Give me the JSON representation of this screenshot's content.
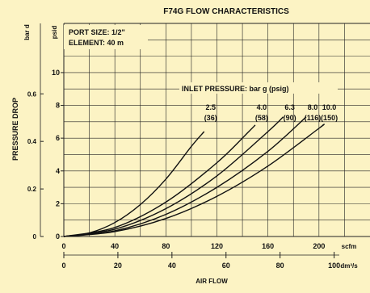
{
  "chart_data": {
    "type": "line",
    "title": "F74G FLOW CHARACTERISTICS",
    "xlabel": "AIR FLOW",
    "ylabel": "PRESSURE DROP",
    "annotations": [
      "PORT SIZE: 1/2\"",
      "ELEMENT: 40 m"
    ],
    "legend_title": "INLET PRESSURE: bar g (psig)",
    "x_axes": {
      "primary": {
        "unit": "scfm",
        "ticks": [
          "0",
          "40",
          "80",
          "120",
          "160",
          "200"
        ],
        "range": [
          0,
          240
        ]
      },
      "secondary": {
        "unit": "dm³/s",
        "ticks": [
          "0",
          "20",
          "40",
          "60",
          "80",
          "100"
        ]
      }
    },
    "y_axes": {
      "primary": {
        "unit": "psid",
        "ticks": [
          "0",
          "2",
          "4",
          "6",
          "8",
          "10"
        ],
        "range": [
          0,
          13
        ]
      },
      "secondary": {
        "unit": "bar d",
        "ticks": [
          "0",
          "0.2",
          "0.4",
          "0.6"
        ]
      }
    },
    "grid": true,
    "series": [
      {
        "name": "2.5",
        "sub": "(36)",
        "x": [
          0,
          20,
          40,
          60,
          80,
          100,
          110
        ],
        "y": [
          0,
          0.22,
          0.85,
          1.95,
          3.5,
          5.5,
          6.4
        ]
      },
      {
        "name": "4.0",
        "sub": "(58)",
        "x": [
          0,
          40,
          80,
          120,
          145,
          150
        ],
        "y": [
          0,
          0.55,
          2.1,
          4.5,
          6.4,
          6.8
        ]
      },
      {
        "name": "6.3",
        "sub": "(90)",
        "x": [
          0,
          40,
          80,
          120,
          160,
          172
        ],
        "y": [
          0,
          0.45,
          1.7,
          3.7,
          6.4,
          7.3
        ]
      },
      {
        "name": "8.0",
        "sub": "(116)",
        "x": [
          0,
          40,
          80,
          120,
          160,
          190
        ],
        "y": [
          0,
          0.35,
          1.35,
          3.0,
          5.2,
          7.3
        ]
      },
      {
        "name": "10.0",
        "sub": "(150)",
        "x": [
          0,
          40,
          80,
          120,
          160,
          200,
          203
        ],
        "y": [
          0,
          0.3,
          1.1,
          2.45,
          4.3,
          6.6,
          6.8
        ]
      }
    ]
  }
}
